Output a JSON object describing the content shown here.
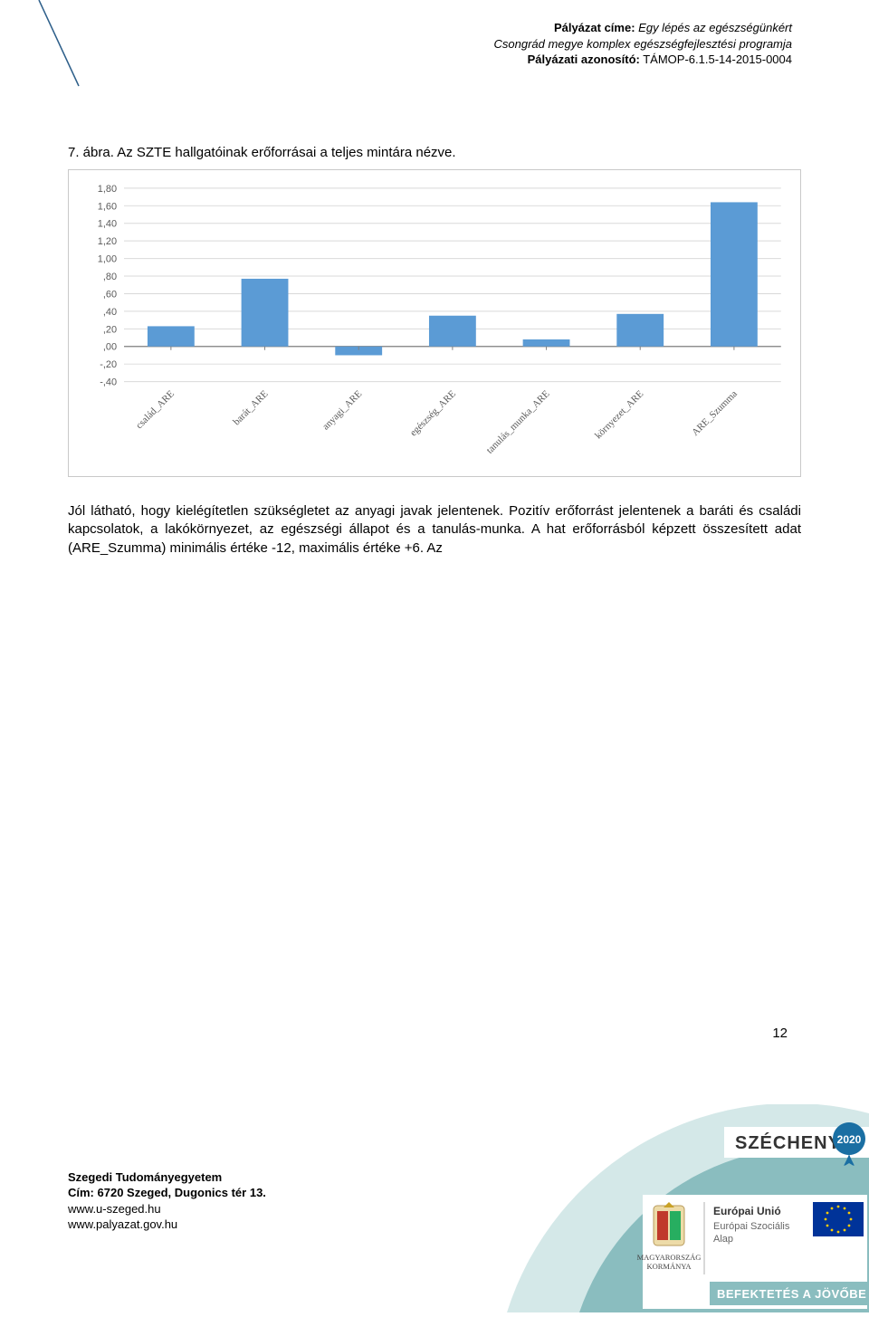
{
  "header": {
    "line1_label": "Pályázat címe:",
    "line1_value": "Egy lépés az egészségünkért",
    "line2": "Csongrád megye komplex egészségfejlesztési programja",
    "line3_label": "Pályázati azonosító:",
    "line3_value": "TÁMOP-6.1.5-14-2015-0004"
  },
  "figure_title": "7. ábra. Az SZTE hallgatóinak erőforrásai a teljes mintára nézve.",
  "body_text": "Jól látható, hogy kielégítetlen szükségletet az anyagi javak jelentenek. Pozitív erőforrást jelentenek a baráti és családi kapcsolatok, a lakókörnyezet, az egészségi állapot és a tanulás-munka. A hat erőforrásból képzett összesített adat (ARE_Szumma) minimális értéke -12, maximális értéke +6. Az",
  "page_number": "12",
  "chart": {
    "type": "bar",
    "categories": [
      "család_ARE",
      "barát_ARE",
      "anyagi_ARE",
      "egészség_ARE",
      "tanulás_munka_ARE",
      "környezet_ARE",
      "ARE_Szumma"
    ],
    "values": [
      0.23,
      0.77,
      -0.1,
      0.35,
      0.08,
      0.37,
      1.64
    ],
    "bar_color": "#5b9bd5",
    "ylim": [
      -0.4,
      1.8
    ],
    "ytick_step": 0.2,
    "ytick_labels": [
      "-,40",
      "-,20",
      ",00",
      ",20",
      ",40",
      ",60",
      ",80",
      "1,00",
      "1,20",
      "1,40",
      "1,60",
      "1,80"
    ],
    "axis_color": "#808080",
    "grid_color": "#d9d9d9",
    "tick_font_size": 11,
    "label_font_size": 11,
    "bar_width": 0.5,
    "background_color": "#ffffff"
  },
  "footer": {
    "institution": "Szegedi Tudományegyetem",
    "address": "Cím: 6720 Szeged, Dugonics tér 13.",
    "url1": "www.u-szeged.hu",
    "url2": "www.palyazat.gov.hu"
  },
  "logos": {
    "szechenyi_text": "SZÉCHENYI",
    "szechenyi_year": "2020",
    "mk_top": "MAGYARORSZÁG",
    "mk_bottom": "KORMÁNYA",
    "eu_line1": "Európai Unió",
    "eu_line2": "Európai Szociális",
    "eu_line3": "Alap",
    "slogan": "BEFEKTETÉS A JÖVŐBE",
    "pin_color": "#1a6fa3",
    "arc_light": "#d4e8e8",
    "arc_dark": "#8abdbf",
    "slogan_bg": "#8abdbf",
    "eu_flag_bg": "#003399",
    "eu_flag_star": "#ffcc00"
  },
  "corner_line_color": "#2e5f8a"
}
